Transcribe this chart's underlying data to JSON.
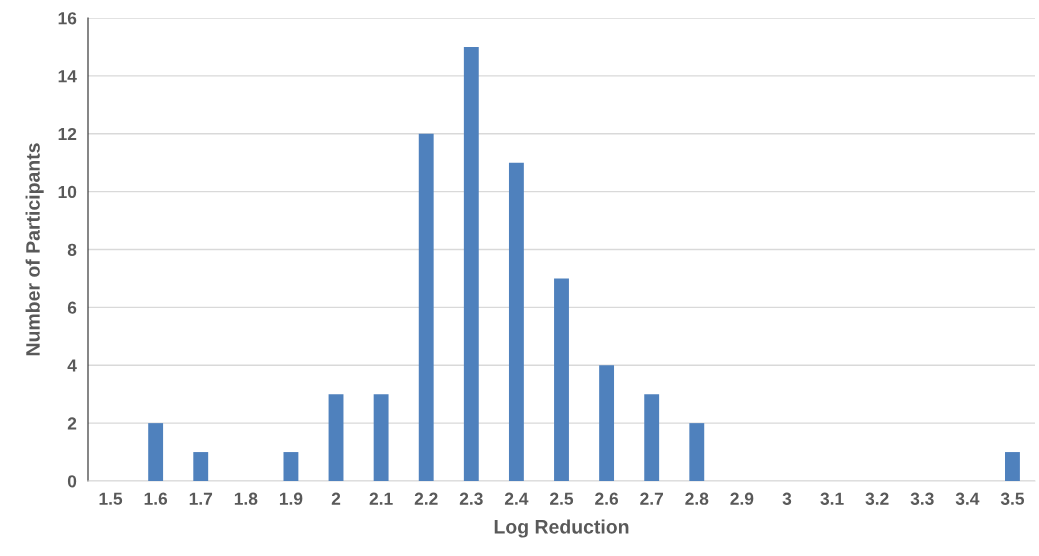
{
  "chart_data": {
    "type": "bar",
    "xlabel": "Log Reduction",
    "ylabel": "Number of Participants",
    "categories": [
      "1.5",
      "1.6",
      "1.7",
      "1.8",
      "1.9",
      "2",
      "2.1",
      "2.2",
      "2.3",
      "2.4",
      "2.5",
      "2.6",
      "2.7",
      "2.8",
      "2.9",
      "3",
      "3.1",
      "3.2",
      "3.3",
      "3.4",
      "3.5"
    ],
    "values": [
      0,
      2,
      1,
      0,
      1,
      3,
      3,
      12,
      15,
      11,
      7,
      4,
      3,
      2,
      0,
      0,
      0,
      0,
      0,
      0,
      1
    ],
    "color": "#4f81bd",
    "ylim": [
      0,
      16
    ],
    "yticks": [
      0,
      2,
      4,
      6,
      8,
      10,
      12,
      14,
      16
    ],
    "grid": "y"
  }
}
